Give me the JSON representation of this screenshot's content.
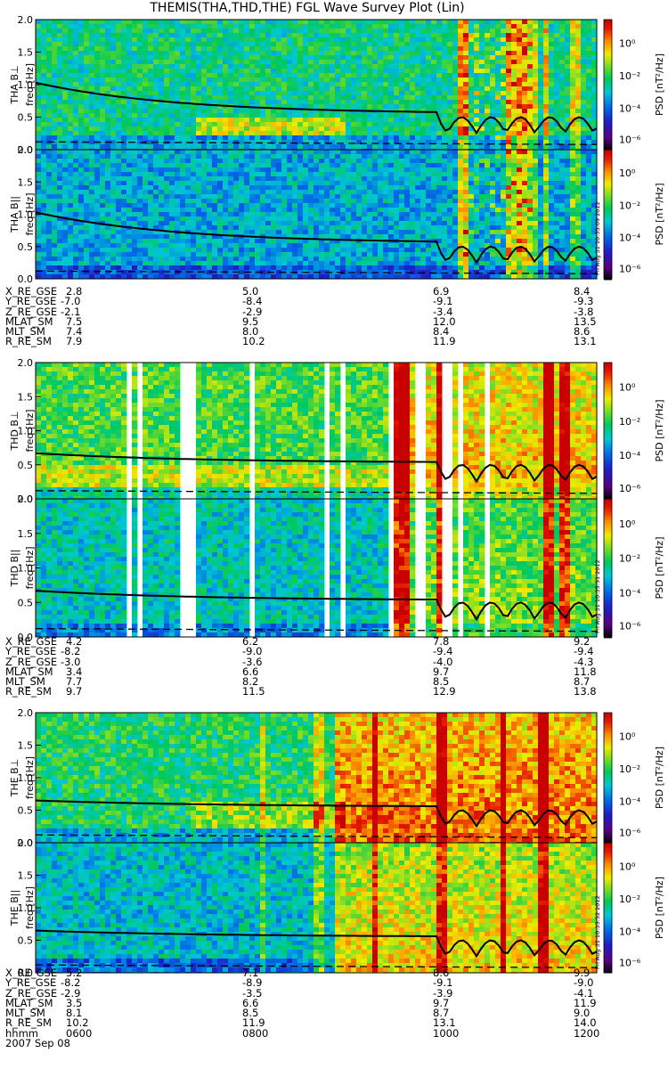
{
  "title": "THEMIS(THA,THD,THE) FGL Wave Survey Plot (Lin)",
  "chart_data": {
    "type": "heatmap",
    "yticks": [
      "0.0",
      "0.5",
      "1.0",
      "1.5",
      "2.0"
    ],
    "ylim": [
      0.0,
      2.0
    ],
    "xlim_hhmm": [
      "0600",
      "1200"
    ],
    "date": "2007 Sep 08",
    "colorbar": {
      "label": "PSD [nT²/Hz]",
      "ticks": [
        "10⁰",
        "10⁻²",
        "10⁻⁴",
        "10⁻⁶"
      ],
      "range_log10": [
        -7,
        1
      ]
    },
    "panels": [
      {
        "probe": "THA",
        "component": "B⊥",
        "ylabel": "THA B⊥",
        "freq_label": "freq [Hz]",
        "stamp": ""
      },
      {
        "probe": "THA",
        "component": "B||",
        "ylabel": "THA B||",
        "freq_label": "freq [Hz]",
        "stamp": "Fri Aug 31 10:35:09 2012"
      },
      {
        "probe": "THD",
        "component": "B⊥",
        "ylabel": "THD B⊥",
        "freq_label": "freq [Hz]",
        "stamp": ""
      },
      {
        "probe": "THD",
        "component": "B||",
        "ylabel": "THD B||",
        "freq_label": "freq [Hz]",
        "stamp": "Fri Aug 31 10:35:51 2012"
      },
      {
        "probe": "THE",
        "component": "B⊥",
        "ylabel": "THE B⊥",
        "freq_label": "freq [Hz]",
        "stamp": ""
      },
      {
        "probe": "THE",
        "component": "B||",
        "ylabel": "THE B||",
        "freq_label": "freq [Hz]",
        "stamp": "Fri Aug 31 10:35:52 2012"
      }
    ],
    "ephemeris": [
      {
        "probe": "THA",
        "rows": [
          {
            "label": "X_RE_GSE",
            "values": [
              "2.8",
              "5.0",
              "6.9",
              "8.4"
            ]
          },
          {
            "label": "Y_RE_GSE",
            "values": [
              "-7.0",
              "-8.4",
              "-9.1",
              "-9.3"
            ]
          },
          {
            "label": "Z_RE_GSE",
            "values": [
              "-2.1",
              "-2.9",
              "-3.4",
              "-3.8"
            ]
          },
          {
            "label": "MLAT_SM",
            "values": [
              "7.5",
              "9.5",
              "12.0",
              "13.5"
            ]
          },
          {
            "label": "MLT_SM",
            "values": [
              "7.4",
              "8.0",
              "8.4",
              "8.6"
            ]
          },
          {
            "label": "R_RE_SM",
            "values": [
              "7.9",
              "10.2",
              "11.9",
              "13.1"
            ]
          }
        ]
      },
      {
        "probe": "THD",
        "rows": [
          {
            "label": "X_RE_GSE",
            "values": [
              "4.2",
              "6.2",
              "7.8",
              "9.2"
            ]
          },
          {
            "label": "Y_RE_GSE",
            "values": [
              "-8.2",
              "-9.0",
              "-9.4",
              "-9.4"
            ]
          },
          {
            "label": "Z_RE_GSE",
            "values": [
              "-3.0",
              "-3.6",
              "-4.0",
              "-4.3"
            ]
          },
          {
            "label": "MLAT_SM",
            "values": [
              "3.4",
              "6.6",
              "9.7",
              "11.8"
            ]
          },
          {
            "label": "MLT_SM",
            "values": [
              "7.7",
              "8.2",
              "8.5",
              "8.7"
            ]
          },
          {
            "label": "R_RE_SM",
            "values": [
              "9.7",
              "11.5",
              "12.9",
              "13.8"
            ]
          }
        ]
      },
      {
        "probe": "THE",
        "rows": [
          {
            "label": "X_RE_GSE",
            "values": [
              "5.2",
              "7.1",
              "8.6",
              "9.9"
            ]
          },
          {
            "label": "Y_RE_GSE",
            "values": [
              "-8.2",
              "-8.9",
              "-9.1",
              "-9.0"
            ]
          },
          {
            "label": "Z_RE_GSE",
            "values": [
              "-2.9",
              "-3.5",
              "-3.9",
              "-4.1"
            ]
          },
          {
            "label": "MLAT_SM",
            "values": [
              "3.5",
              "6.6",
              "9.7",
              "11.9"
            ]
          },
          {
            "label": "MLT_SM",
            "values": [
              "8.1",
              "8.5",
              "8.7",
              "9.0"
            ]
          },
          {
            "label": "R_RE_SM",
            "values": [
              "10.2",
              "11.9",
              "13.1",
              "14.0"
            ]
          },
          {
            "label": "hhmm",
            "values": [
              "0600",
              "0800",
              "1000",
              "1200"
            ]
          }
        ]
      }
    ]
  }
}
